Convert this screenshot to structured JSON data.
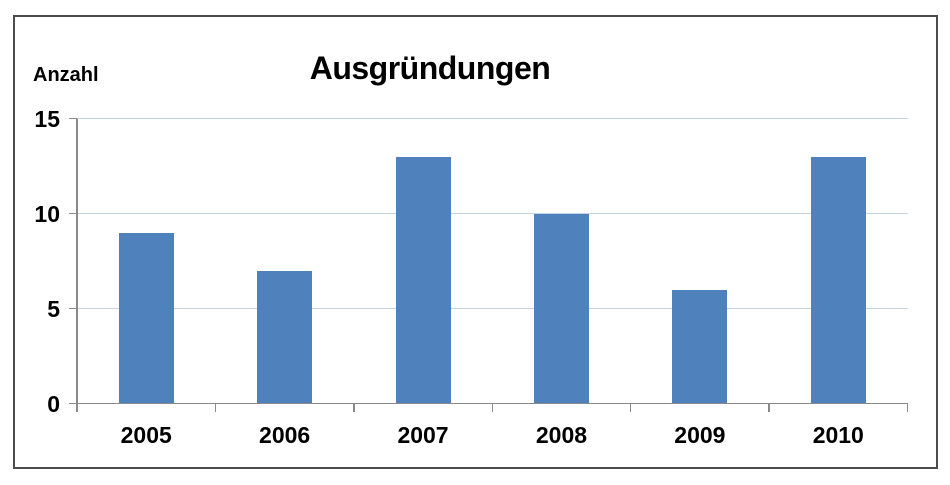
{
  "window": {
    "background": "#FFFFFF",
    "border_color": "#4C4C4C"
  },
  "chart_data": {
    "type": "bar",
    "title": "Ausgründungen",
    "ylabel": "Anzahl",
    "xlabel": "",
    "categories": [
      "2005",
      "2006",
      "2007",
      "2008",
      "2009",
      "2010"
    ],
    "values": [
      9,
      7,
      13,
      10,
      6,
      13
    ],
    "ylim": [
      0,
      15
    ],
    "yticks": [
      0,
      5,
      10,
      15
    ],
    "grid": true,
    "legend": "none",
    "bar_color": "#4F81BD",
    "gridline_color": "#C4D4E4",
    "axis_color": "#8A8A8A",
    "text_color": "#000000"
  }
}
